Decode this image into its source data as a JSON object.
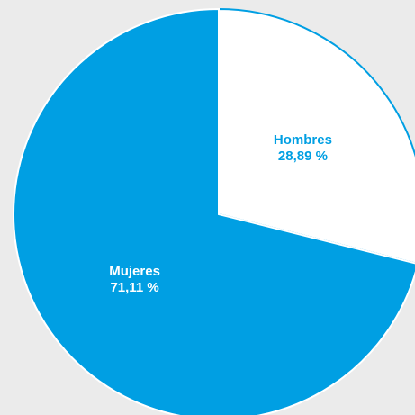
{
  "chart_data": {
    "type": "pie",
    "categories": [
      "Hombres",
      "Mujeres"
    ],
    "values": [
      28.89,
      71.11
    ],
    "value_labels": [
      "28,89 %",
      "71,11 %"
    ],
    "colors": [
      "#ffffff",
      "#009fe3"
    ],
    "label_colors": [
      "#009fe3",
      "#ffffff"
    ]
  }
}
